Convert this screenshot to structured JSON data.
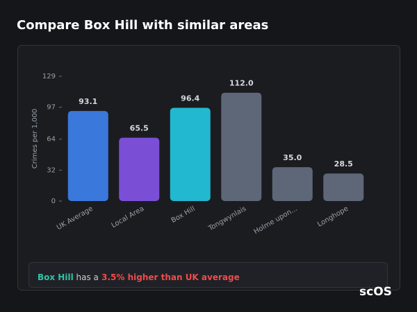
{
  "page_title": "Compare Box Hill with similar areas",
  "chart_data": {
    "type": "bar",
    "y_label": "Crimes per 1,000",
    "categories": [
      "UK Average",
      "Local Area",
      "Box Hill",
      "Tongwynlais",
      "Holme upon...",
      "Longhope"
    ],
    "values": [
      93.1,
      65.5,
      96.4,
      112,
      35,
      28.5
    ],
    "value_labels": [
      "93.1",
      "65.5",
      "96.4",
      "112.0",
      "35.0",
      "28.5"
    ],
    "colors": [
      "#3b78db",
      "#7a4fd6",
      "#22b8cf",
      "#5d6777",
      "#5d6777",
      "#5d6777"
    ],
    "ylim": [
      0,
      129
    ],
    "yticks": [
      0,
      32,
      64,
      97,
      129
    ]
  },
  "summary": {
    "area": "Box Hill",
    "middle": "has a",
    "comparison": "3.5% higher than UK average"
  },
  "logo": "scOS"
}
